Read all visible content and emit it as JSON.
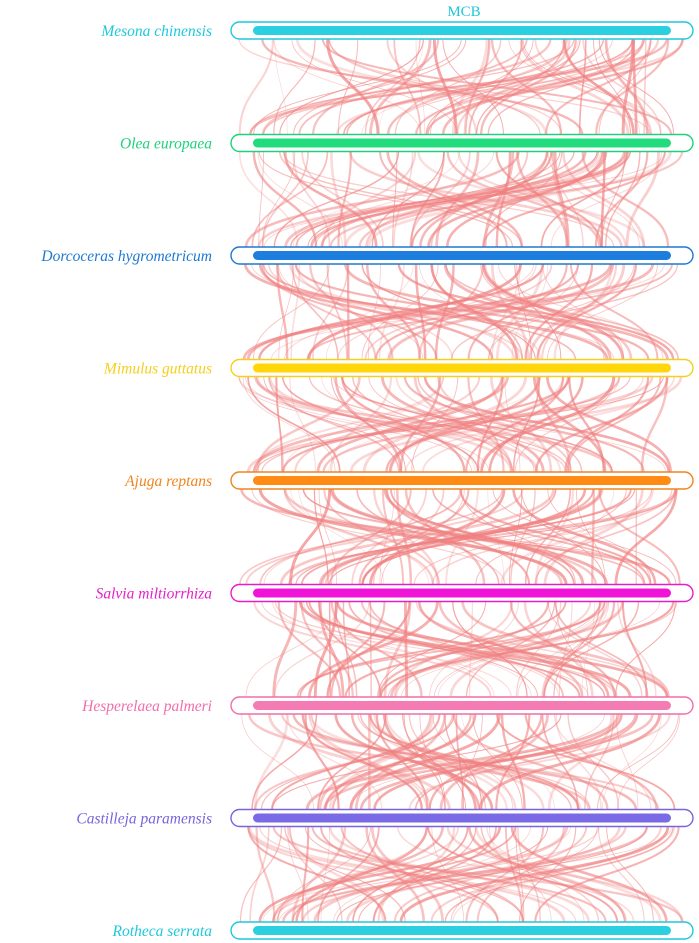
{
  "title": "MCB",
  "colors": {
    "links": "#f08080",
    "title": "#1ec8dc"
  },
  "species": [
    {
      "name": "Mesona chinensis",
      "color": "#1ec8dc",
      "bar": "#2ad0e0"
    },
    {
      "name": "Olea europaea",
      "color": "#1ed27a",
      "bar": "#20dc7c"
    },
    {
      "name": "Dorcoceras hygrometricum",
      "color": "#1e78d2",
      "bar": "#1e7ee0"
    },
    {
      "name": "Mimulus guttatus",
      "color": "#f5cf1e",
      "bar": "#ffd60a"
    },
    {
      "name": "Ajuga reptans",
      "color": "#f0841e",
      "bar": "#ff8a14"
    },
    {
      "name": "Salvia miltiorrhiza",
      "color": "#e61ec8",
      "bar": "#f014d8"
    },
    {
      "name": "Hesperelaea palmeri",
      "color": "#f06eaa",
      "bar": "#f57bb4"
    },
    {
      "name": "Castilleja paramensis",
      "color": "#7864dc",
      "bar": "#7a6ae6"
    },
    {
      "name": "Rotheca serrata",
      "color": "#1ec8dc",
      "bar": "#2ad0e0"
    }
  ]
}
